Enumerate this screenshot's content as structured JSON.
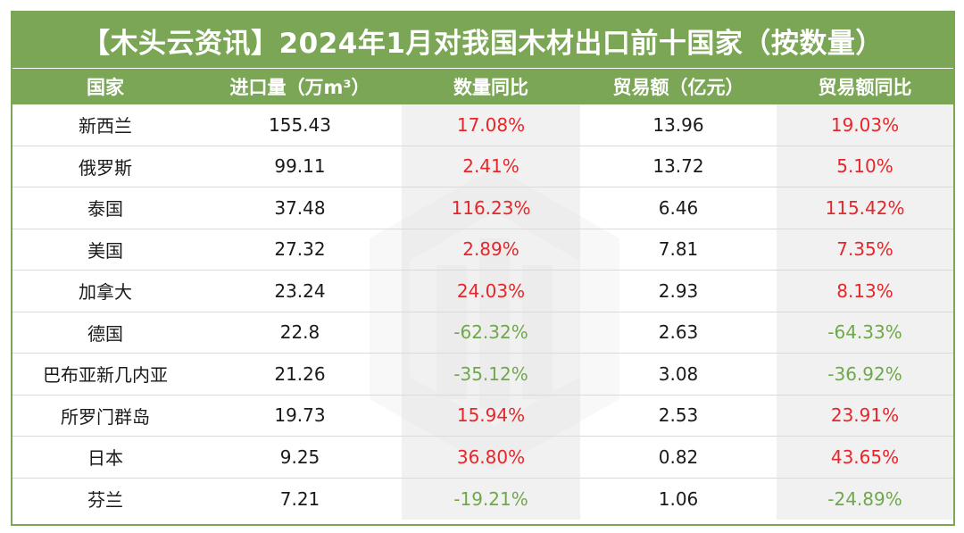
{
  "title": "【木头云资讯】2024年1月对我国木材出口前十国家（按数量）",
  "headers": [
    "国家",
    "进口量（万m³）",
    "数量同比",
    "贸易额（亿元）",
    "贸易额同比"
  ],
  "rows": [
    {
      "country": "新西兰",
      "volume": "155.43",
      "volume_yoy": "17.08%",
      "trade": "13.96",
      "trade_yoy": "19.03%"
    },
    {
      "country": "俄罗斯",
      "volume": "99.11",
      "volume_yoy": "2.41%",
      "trade": "13.72",
      "trade_yoy": "5.10%"
    },
    {
      "country": "泰国",
      "volume": "37.48",
      "volume_yoy": "116.23%",
      "trade": "6.46",
      "trade_yoy": "115.42%"
    },
    {
      "country": "美国",
      "volume": "27.32",
      "volume_yoy": "2.89%",
      "trade": "7.81",
      "trade_yoy": "7.35%"
    },
    {
      "country": "加拿大",
      "volume": "23.24",
      "volume_yoy": "24.03%",
      "trade": "2.93",
      "trade_yoy": "8.13%"
    },
    {
      "country": "德国",
      "volume": "22.8",
      "volume_yoy": "-62.32%",
      "trade": "2.63",
      "trade_yoy": "-64.33%"
    },
    {
      "country": "巴布亚新几内亚",
      "volume": "21.26",
      "volume_yoy": "-35.12%",
      "trade": "3.08",
      "trade_yoy": "-36.92%"
    },
    {
      "country": "所罗门群岛",
      "volume": "19.73",
      "volume_yoy": "15.94%",
      "trade": "2.53",
      "trade_yoy": "23.91%"
    },
    {
      "country": "日本",
      "volume": "9.25",
      "volume_yoy": "36.80%",
      "trade": "0.82",
      "trade_yoy": "43.65%"
    },
    {
      "country": "芬兰",
      "volume": "7.21",
      "volume_yoy": "-19.21%",
      "trade": "1.06",
      "trade_yoy": "-24.89%"
    }
  ],
  "colors": {
    "header_bg": "#7aa655",
    "positive": "#e8262a",
    "negative": "#6fa84a"
  },
  "watermark_icon": "wood-logo-watermark-icon"
}
